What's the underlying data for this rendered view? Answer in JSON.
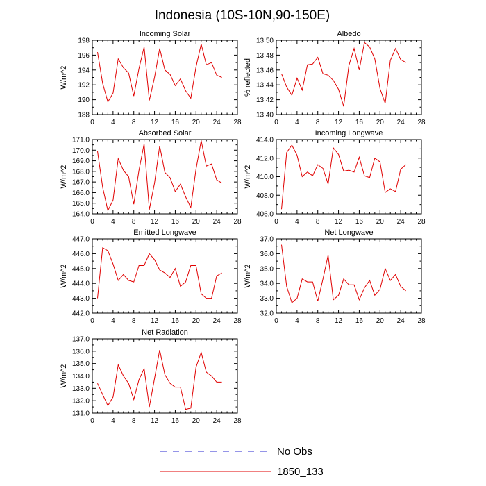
{
  "figure": {
    "title": "Indonesia (10S-10N,90-150E)"
  },
  "legend": [
    {
      "label": "No Obs",
      "color": "#2b2bd0",
      "dash": true
    },
    {
      "label": "1850_133",
      "color": "#e00000",
      "dash": false
    }
  ],
  "chart_data": [
    {
      "type": "line",
      "title": "Incoming Solar",
      "ylabel": "W/m^2",
      "xlim": [
        0,
        28
      ],
      "ylim": [
        188,
        198
      ],
      "x_ticks": [
        "0",
        "4",
        "8",
        "12",
        "16",
        "20",
        "24",
        "28"
      ],
      "y_ticks": [
        "188",
        "190",
        "192",
        "194",
        "196",
        "198"
      ],
      "series": [
        {
          "name": "1850_133",
          "color": "#e00000",
          "x": [
            1,
            2,
            3,
            4,
            5,
            6,
            7,
            8,
            9,
            10,
            11,
            12,
            13,
            14,
            15,
            16,
            17,
            18,
            19,
            20,
            21,
            22,
            23,
            24,
            25
          ],
          "values": [
            196.4,
            192.2,
            189.7,
            190.9,
            195.5,
            194.3,
            193.6,
            190.5,
            194.2,
            197.1,
            189.9,
            193.0,
            196.9,
            194.0,
            193.4,
            191.9,
            192.8,
            191.2,
            190.2,
            194.4,
            197.5,
            194.7,
            195.0,
            193.3,
            193.0
          ]
        }
      ]
    },
    {
      "type": "line",
      "title": "Albedo",
      "ylabel": "% reflected",
      "xlim": [
        0,
        28
      ],
      "ylim": [
        13.4,
        13.5
      ],
      "x_ticks": [
        "0",
        "4",
        "8",
        "12",
        "16",
        "20",
        "24",
        "28"
      ],
      "y_ticks": [
        "13.40",
        "13.42",
        "13.44",
        "13.46",
        "13.48",
        "13.50"
      ],
      "series": [
        {
          "name": "1850_133",
          "color": "#e00000",
          "x": [
            1,
            2,
            3,
            4,
            5,
            6,
            7,
            8,
            9,
            10,
            11,
            12,
            13,
            14,
            15,
            16,
            17,
            18,
            19,
            20,
            21,
            22,
            23,
            24,
            25
          ],
          "values": [
            13.455,
            13.437,
            13.426,
            13.449,
            13.433,
            13.467,
            13.468,
            13.477,
            13.455,
            13.453,
            13.446,
            13.434,
            13.411,
            13.466,
            13.489,
            13.46,
            13.497,
            13.491,
            13.475,
            13.435,
            13.415,
            13.473,
            13.489,
            13.474,
            13.47
          ]
        }
      ]
    },
    {
      "type": "line",
      "title": "Absorbed Solar",
      "ylabel": "W/m^2",
      "xlim": [
        0,
        28
      ],
      "ylim": [
        164.0,
        171.0
      ],
      "x_ticks": [
        "0",
        "4",
        "8",
        "12",
        "16",
        "20",
        "24",
        "28"
      ],
      "y_ticks": [
        "164.0",
        "165.0",
        "166.0",
        "167.0",
        "168.0",
        "169.0",
        "170.0",
        "171.0"
      ],
      "series": [
        {
          "name": "1850_133",
          "color": "#e00000",
          "x": [
            1,
            2,
            3,
            4,
            5,
            6,
            7,
            8,
            9,
            10,
            11,
            12,
            13,
            14,
            15,
            16,
            17,
            18,
            19,
            20,
            21,
            22,
            23,
            24,
            25
          ],
          "values": [
            169.9,
            166.5,
            164.3,
            165.3,
            169.2,
            168.1,
            167.5,
            164.9,
            168.1,
            170.6,
            164.4,
            166.9,
            170.4,
            167.9,
            167.4,
            166.1,
            166.8,
            165.6,
            164.6,
            168.2,
            170.9,
            168.5,
            168.7,
            167.2,
            166.9
          ]
        }
      ]
    },
    {
      "type": "line",
      "title": "Incoming Longwave",
      "ylabel": "W/m^2",
      "xlim": [
        0,
        28
      ],
      "ylim": [
        406.0,
        414.0
      ],
      "x_ticks": [
        "0",
        "4",
        "8",
        "12",
        "16",
        "20",
        "24",
        "28"
      ],
      "y_ticks": [
        "406.0",
        "408.0",
        "410.0",
        "412.0",
        "414.0"
      ],
      "series": [
        {
          "name": "1850_133",
          "color": "#e00000",
          "x": [
            1,
            2,
            3,
            4,
            5,
            6,
            7,
            8,
            9,
            10,
            11,
            12,
            13,
            14,
            15,
            16,
            17,
            18,
            19,
            20,
            21,
            22,
            23,
            24,
            25
          ],
          "values": [
            406.5,
            412.6,
            413.4,
            412.3,
            410.0,
            410.5,
            410.1,
            411.3,
            410.9,
            409.2,
            413.1,
            412.4,
            410.6,
            410.7,
            410.5,
            412.1,
            410.1,
            409.9,
            412.0,
            411.6,
            408.3,
            408.7,
            408.4,
            410.8,
            411.3
          ]
        }
      ]
    },
    {
      "type": "line",
      "title": "Emitted Longwave",
      "ylabel": "W/m^2",
      "xlim": [
        0,
        28
      ],
      "ylim": [
        442.0,
        447.0
      ],
      "x_ticks": [
        "0",
        "4",
        "8",
        "12",
        "16",
        "20",
        "24",
        "28"
      ],
      "y_ticks": [
        "442.0",
        "443.0",
        "444.0",
        "445.0",
        "446.0",
        "447.0"
      ],
      "series": [
        {
          "name": "1850_133",
          "color": "#e00000",
          "x": [
            1,
            2,
            3,
            4,
            5,
            6,
            7,
            8,
            9,
            10,
            11,
            12,
            13,
            14,
            15,
            16,
            17,
            18,
            19,
            20,
            21,
            22,
            23,
            24,
            25
          ],
          "values": [
            443.0,
            446.4,
            446.2,
            445.3,
            444.2,
            444.6,
            444.2,
            444.1,
            445.2,
            445.2,
            446.0,
            445.6,
            444.9,
            444.7,
            444.4,
            445.0,
            443.8,
            444.1,
            445.2,
            445.2,
            443.3,
            443.0,
            443.0,
            444.5,
            444.7
          ]
        }
      ]
    },
    {
      "type": "line",
      "title": "Net Longwave",
      "ylabel": "W/m^2",
      "xlim": [
        0,
        28
      ],
      "ylim": [
        32.0,
        37.0
      ],
      "x_ticks": [
        "0",
        "4",
        "8",
        "12",
        "16",
        "20",
        "24",
        "28"
      ],
      "y_ticks": [
        "32.0",
        "33.0",
        "34.0",
        "35.0",
        "36.0",
        "37.0"
      ],
      "series": [
        {
          "name": "1850_133",
          "color": "#e00000",
          "x": [
            1,
            2,
            3,
            4,
            5,
            6,
            7,
            8,
            9,
            10,
            11,
            12,
            13,
            14,
            15,
            16,
            17,
            18,
            19,
            20,
            21,
            22,
            23,
            24,
            25
          ],
          "values": [
            36.6,
            33.8,
            32.7,
            33.0,
            34.3,
            34.1,
            34.1,
            32.8,
            34.3,
            35.9,
            32.9,
            33.2,
            34.3,
            33.9,
            33.9,
            32.9,
            33.7,
            34.2,
            33.2,
            33.6,
            35.0,
            34.2,
            34.6,
            33.8,
            33.5
          ]
        }
      ]
    },
    {
      "type": "line",
      "title": "Net Radiation",
      "ylabel": "W/m^2",
      "xlim": [
        0,
        28
      ],
      "ylim": [
        131.0,
        137.0
      ],
      "x_ticks": [
        "0",
        "4",
        "8",
        "12",
        "16",
        "20",
        "24",
        "28"
      ],
      "y_ticks": [
        "131.0",
        "132.0",
        "133.0",
        "134.0",
        "135.0",
        "136.0",
        "137.0"
      ],
      "series": [
        {
          "name": "1850_133",
          "color": "#e00000",
          "x": [
            1,
            2,
            3,
            4,
            5,
            6,
            7,
            8,
            9,
            10,
            11,
            12,
            13,
            14,
            15,
            16,
            17,
            18,
            19,
            20,
            21,
            22,
            23,
            24,
            25
          ],
          "values": [
            133.4,
            132.5,
            131.6,
            132.3,
            134.9,
            134.0,
            133.4,
            132.1,
            133.7,
            134.6,
            131.5,
            133.8,
            136.1,
            134.1,
            133.4,
            133.1,
            133.1,
            131.3,
            131.4,
            134.7,
            135.9,
            134.3,
            134.0,
            133.5,
            133.5
          ]
        }
      ]
    }
  ]
}
